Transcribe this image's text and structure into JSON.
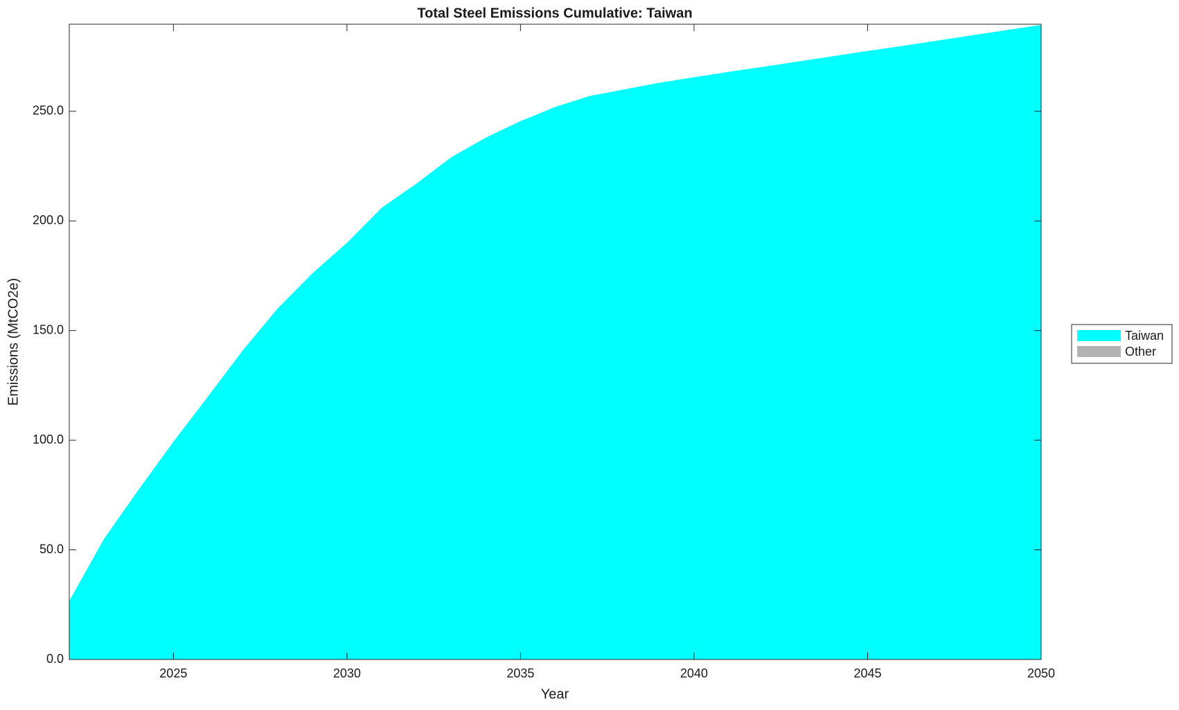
{
  "chart_data": {
    "type": "area",
    "stacked": true,
    "title": "Total Steel Emissions Cumulative: Taiwan",
    "xlabel": "Year",
    "ylabel": "Emissions (MtCO2e)",
    "x": [
      2022,
      2023,
      2024,
      2025,
      2026,
      2027,
      2028,
      2029,
      2030,
      2031,
      2032,
      2033,
      2034,
      2035,
      2036,
      2037,
      2038,
      2039,
      2040,
      2041,
      2042,
      2043,
      2044,
      2045,
      2046,
      2047,
      2048,
      2049,
      2050
    ],
    "series": [
      {
        "name": "Taiwan",
        "color": "#00ffff",
        "values": [
          26.7,
          55,
          77.5,
          99.3,
          120,
          141,
          160,
          176,
          190,
          206,
          217,
          229,
          238,
          245.5,
          252,
          257,
          260,
          263,
          265.5,
          268,
          270.3,
          272.7,
          275.1,
          277.5,
          279.8,
          282.2,
          284.6,
          287,
          289.4
        ]
      },
      {
        "name": "Other",
        "color": "#b3b3b3",
        "values": [
          0,
          0,
          0,
          0,
          0,
          0,
          0,
          0,
          0,
          0,
          0,
          0,
          0,
          0,
          0,
          0,
          0,
          0,
          0,
          0,
          0,
          0,
          0,
          0,
          0,
          0,
          0,
          0,
          0
        ]
      }
    ],
    "xlim": [
      2022,
      2050
    ],
    "xticks": [
      2025,
      2030,
      2035,
      2040,
      2045,
      2050
    ],
    "ylim": [
      0,
      289.7
    ],
    "yticks": [
      {
        "value": 0,
        "label": "0.0"
      },
      {
        "value": 50,
        "label": "50.0"
      },
      {
        "value": 100,
        "label": "100.0"
      },
      {
        "value": 150,
        "label": "150.0"
      },
      {
        "value": 200,
        "label": "200.0"
      },
      {
        "value": 250,
        "label": "250.0"
      }
    ],
    "grid": false,
    "legend": "right"
  }
}
